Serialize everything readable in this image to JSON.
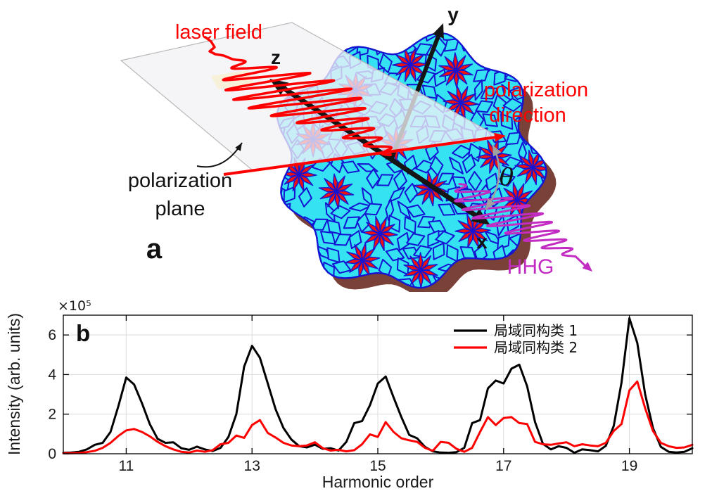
{
  "figure": {
    "background": "#ffffff",
    "panel_a": {
      "label": "a",
      "labels": {
        "laser_field": "laser field",
        "z_axis": "z",
        "y_axis": "y",
        "x_axis": "x",
        "polarization_direction_line1": "polarization",
        "polarization_direction_line2": "direction",
        "polarization_plane_line1": "polarization",
        "polarization_plane_line2": "plane",
        "theta": "θ",
        "hhg": "HHG"
      },
      "colors": {
        "laser_red": "#ff0000",
        "hhg_magenta": "#c32cc3",
        "axes_black": "#151515",
        "plane_fill": "#f2f2f6",
        "plane_edge": "#b8b8b8",
        "crystal_cyan": "#35e2f2",
        "crystal_red": "#ee1111",
        "crystal_edge_blue": "#1414d2",
        "crystal_shadow": "#7a4138",
        "theta_gray": "#a0a0a0"
      }
    },
    "panel_b": {
      "label": "b"
    }
  },
  "chart_data": {
    "type": "line",
    "title": "",
    "xlabel": "Harmonic order",
    "ylabel": "Intensity (arb. units)",
    "y_scale_label": "×10⁵",
    "xlim": [
      10,
      20
    ],
    "ylim": [
      0,
      7
    ],
    "xticks": [
      11,
      13,
      15,
      17,
      19
    ],
    "yticks": [
      0,
      2,
      4,
      6
    ],
    "grid": true,
    "legend_position": "upper-right-inside, no border",
    "x_start": 10,
    "x_step": 0.125,
    "series": [
      {
        "name": "局域同构类 1",
        "color": "#000000",
        "values": [
          0.05,
          0.06,
          0.1,
          0.22,
          0.45,
          0.55,
          1.1,
          2.4,
          3.85,
          3.5,
          2.55,
          1.5,
          0.75,
          0.55,
          0.58,
          0.28,
          0.2,
          0.36,
          0.22,
          0.14,
          0.3,
          0.85,
          2.0,
          4.4,
          5.45,
          4.85,
          3.55,
          2.25,
          1.3,
          0.72,
          0.38,
          0.32,
          0.46,
          0.25,
          0.28,
          0.16,
          0.6,
          1.55,
          1.65,
          2.45,
          3.55,
          3.9,
          2.85,
          1.85,
          0.95,
          0.78,
          0.35,
          0.12,
          0.06,
          0.05,
          0.08,
          0.3,
          1.55,
          1.7,
          3.3,
          3.7,
          3.55,
          4.3,
          4.5,
          3.4,
          1.6,
          0.5,
          0.22,
          0.38,
          0.3,
          0.05,
          0.22,
          0.18,
          0.12,
          0.4,
          1.4,
          3.6,
          6.85,
          5.6,
          3.0,
          1.3,
          0.35,
          0.1,
          0.06,
          0.1,
          0.28
        ]
      },
      {
        "name": "局域同构类 2",
        "color": "#ff0000",
        "values": [
          0.03,
          0.03,
          0.04,
          0.08,
          0.15,
          0.3,
          0.55,
          0.9,
          1.18,
          1.25,
          1.1,
          0.88,
          0.6,
          0.38,
          0.22,
          0.1,
          0.06,
          0.16,
          0.1,
          0.18,
          0.48,
          0.55,
          0.92,
          0.8,
          1.45,
          1.7,
          1.05,
          0.82,
          0.55,
          0.42,
          0.38,
          0.42,
          0.58,
          0.28,
          0.16,
          0.2,
          0.12,
          0.18,
          0.48,
          0.98,
          0.85,
          1.6,
          1.1,
          0.78,
          0.68,
          0.6,
          0.3,
          0.15,
          0.6,
          0.55,
          0.25,
          0.1,
          0.3,
          1.1,
          1.85,
          1.45,
          1.8,
          1.85,
          1.55,
          1.5,
          0.6,
          0.48,
          0.45,
          0.52,
          0.58,
          0.38,
          0.48,
          0.42,
          0.38,
          0.55,
          1.15,
          1.5,
          3.2,
          3.65,
          2.3,
          1.15,
          0.55,
          0.38,
          0.3,
          0.32,
          0.45
        ]
      }
    ]
  }
}
